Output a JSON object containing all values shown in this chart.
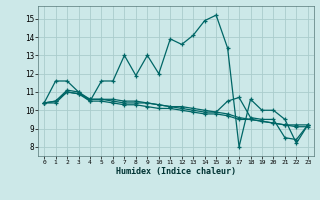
{
  "xlabel": "Humidex (Indice chaleur)",
  "bg_color": "#cce8e8",
  "grid_color": "#aacccc",
  "line_color": "#006666",
  "xlim": [
    -0.5,
    23.5
  ],
  "ylim": [
    7.5,
    15.7
  ],
  "xticks": [
    0,
    1,
    2,
    3,
    4,
    5,
    6,
    7,
    8,
    9,
    10,
    11,
    12,
    13,
    14,
    15,
    16,
    17,
    18,
    19,
    20,
    21,
    22,
    23
  ],
  "yticks": [
    8,
    9,
    10,
    11,
    12,
    13,
    14,
    15
  ],
  "line1_x": [
    0,
    1,
    2,
    3,
    4,
    5,
    6,
    7,
    8,
    9,
    10,
    11,
    12,
    13,
    14,
    15,
    16,
    17,
    18,
    19,
    20,
    21,
    22,
    23
  ],
  "line1_y": [
    10.4,
    11.6,
    11.6,
    11.0,
    10.5,
    11.6,
    11.6,
    13.0,
    11.9,
    13.0,
    12.0,
    13.9,
    13.6,
    14.1,
    14.9,
    15.2,
    13.4,
    8.0,
    10.6,
    10.0,
    10.0,
    9.5,
    8.2,
    9.2
  ],
  "line2_x": [
    0,
    1,
    2,
    3,
    4,
    5,
    6,
    7,
    8,
    9,
    10,
    11,
    12,
    13,
    14,
    15,
    16,
    17,
    18,
    19,
    20,
    21,
    22,
    23
  ],
  "line2_y": [
    10.4,
    10.4,
    11.0,
    10.9,
    10.5,
    10.5,
    10.4,
    10.3,
    10.3,
    10.2,
    10.1,
    10.1,
    10.0,
    9.9,
    9.8,
    9.8,
    9.7,
    9.5,
    9.5,
    9.4,
    9.3,
    9.2,
    9.2,
    9.2
  ],
  "line3_x": [
    0,
    1,
    2,
    3,
    4,
    5,
    6,
    7,
    8,
    9,
    10,
    11,
    12,
    13,
    14,
    15,
    16,
    17,
    18,
    19,
    20,
    21,
    22,
    23
  ],
  "line3_y": [
    10.4,
    10.5,
    11.0,
    10.9,
    10.6,
    10.6,
    10.5,
    10.4,
    10.4,
    10.4,
    10.3,
    10.2,
    10.2,
    10.1,
    10.0,
    9.9,
    9.8,
    9.6,
    9.5,
    9.4,
    9.3,
    9.2,
    9.1,
    9.1
  ],
  "line4_x": [
    0,
    1,
    2,
    3,
    4,
    5,
    6,
    7,
    8,
    9,
    10,
    11,
    12,
    13,
    14,
    15,
    16,
    17,
    18,
    19,
    20,
    21,
    22,
    23
  ],
  "line4_y": [
    10.4,
    10.5,
    11.1,
    11.0,
    10.6,
    10.6,
    10.6,
    10.5,
    10.5,
    10.4,
    10.3,
    10.2,
    10.1,
    10.0,
    9.9,
    9.9,
    10.5,
    10.7,
    9.6,
    9.5,
    9.5,
    8.5,
    8.4,
    9.2
  ]
}
